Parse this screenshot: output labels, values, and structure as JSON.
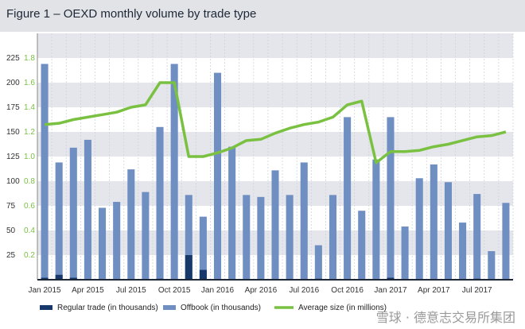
{
  "title": "Figure 1 – OEXD monthly volume by trade type",
  "watermark": "雪球 · 德意志交易所集团",
  "colors": {
    "regular": "#17386a",
    "offbook": "#6f8fc2",
    "average": "#7ac142",
    "band": "#e4e6eb",
    "right_axis": "#7ac142"
  },
  "chart_data": {
    "type": "bar",
    "months": [
      "Jan 2015",
      "Feb 2015",
      "Mar 2015",
      "Apr 2015",
      "May 2015",
      "Jun 2015",
      "Jul 2015",
      "Aug 2015",
      "Sep 2015",
      "Oct 2015",
      "Nov 2015",
      "Dec 2015",
      "Jan 2016",
      "Feb 2016",
      "Mar 2016",
      "Apr 2016",
      "May 2016",
      "Jun 2016",
      "Jul 2016",
      "Aug 2016",
      "Sep 2016",
      "Oct 2016",
      "Nov 2016",
      "Dec 2016",
      "Jan 2017",
      "Feb 2017",
      "Mar 2017",
      "Apr 2017",
      "May 2017",
      "Jun 2017",
      "Jul 2017",
      "Aug 2017",
      "Sep 2017"
    ],
    "x_tick_labels": [
      "Jan 2015",
      "Apr 2015",
      "Jul 2015",
      "Oct 2015",
      "Jan 2016",
      "Apr 2016",
      "Jul 2016",
      "Oct 2016",
      "Jan 2017",
      "Apr 2017",
      "Jul 2017"
    ],
    "x_tick_indices": [
      0,
      3,
      6,
      9,
      12,
      15,
      18,
      21,
      24,
      27,
      30
    ],
    "left_axis": {
      "ticks": [
        25,
        50,
        75,
        100,
        125,
        150,
        175,
        200,
        225
      ],
      "ylim": [
        0,
        250
      ]
    },
    "right_axis": {
      "ticks": [
        "0.2",
        "0.4",
        "0.6",
        "0.8",
        "1.0",
        "1.2",
        "1.4",
        "1.6",
        "1.8"
      ],
      "ylim": [
        0,
        2.0
      ]
    },
    "series": [
      {
        "name": "Regular trade (in thousands)",
        "axis": "left",
        "type": "bar",
        "values": [
          2,
          5,
          2,
          0,
          0,
          0,
          0,
          0,
          1,
          0,
          25,
          10,
          0,
          0,
          0,
          0,
          0,
          0,
          0,
          1,
          0,
          0,
          0,
          0,
          2,
          0,
          0,
          0,
          0,
          0,
          1,
          0,
          0
        ]
      },
      {
        "name": "Offbook (in thousands)",
        "axis": "left",
        "type": "bar",
        "values": [
          219,
          119,
          134,
          142,
          73,
          79,
          112,
          89,
          155,
          219,
          86,
          64,
          210,
          135,
          86,
          84,
          111,
          86,
          119,
          35,
          86,
          165,
          70,
          122,
          165,
          54,
          103,
          117,
          99,
          58,
          87,
          29,
          78
        ]
      },
      {
        "name": "Average size (in millions)",
        "axis": "right",
        "type": "line",
        "values": [
          1.26,
          1.27,
          1.3,
          1.32,
          1.34,
          1.36,
          1.4,
          1.42,
          1.6,
          1.6,
          1.0,
          1.0,
          1.03,
          1.07,
          1.13,
          1.14,
          1.19,
          1.23,
          1.26,
          1.28,
          1.32,
          1.42,
          1.45,
          0.95,
          1.04,
          1.04,
          1.05,
          1.08,
          1.1,
          1.13,
          1.16,
          1.17,
          1.2
        ]
      }
    ],
    "legend_position": "bottom"
  }
}
